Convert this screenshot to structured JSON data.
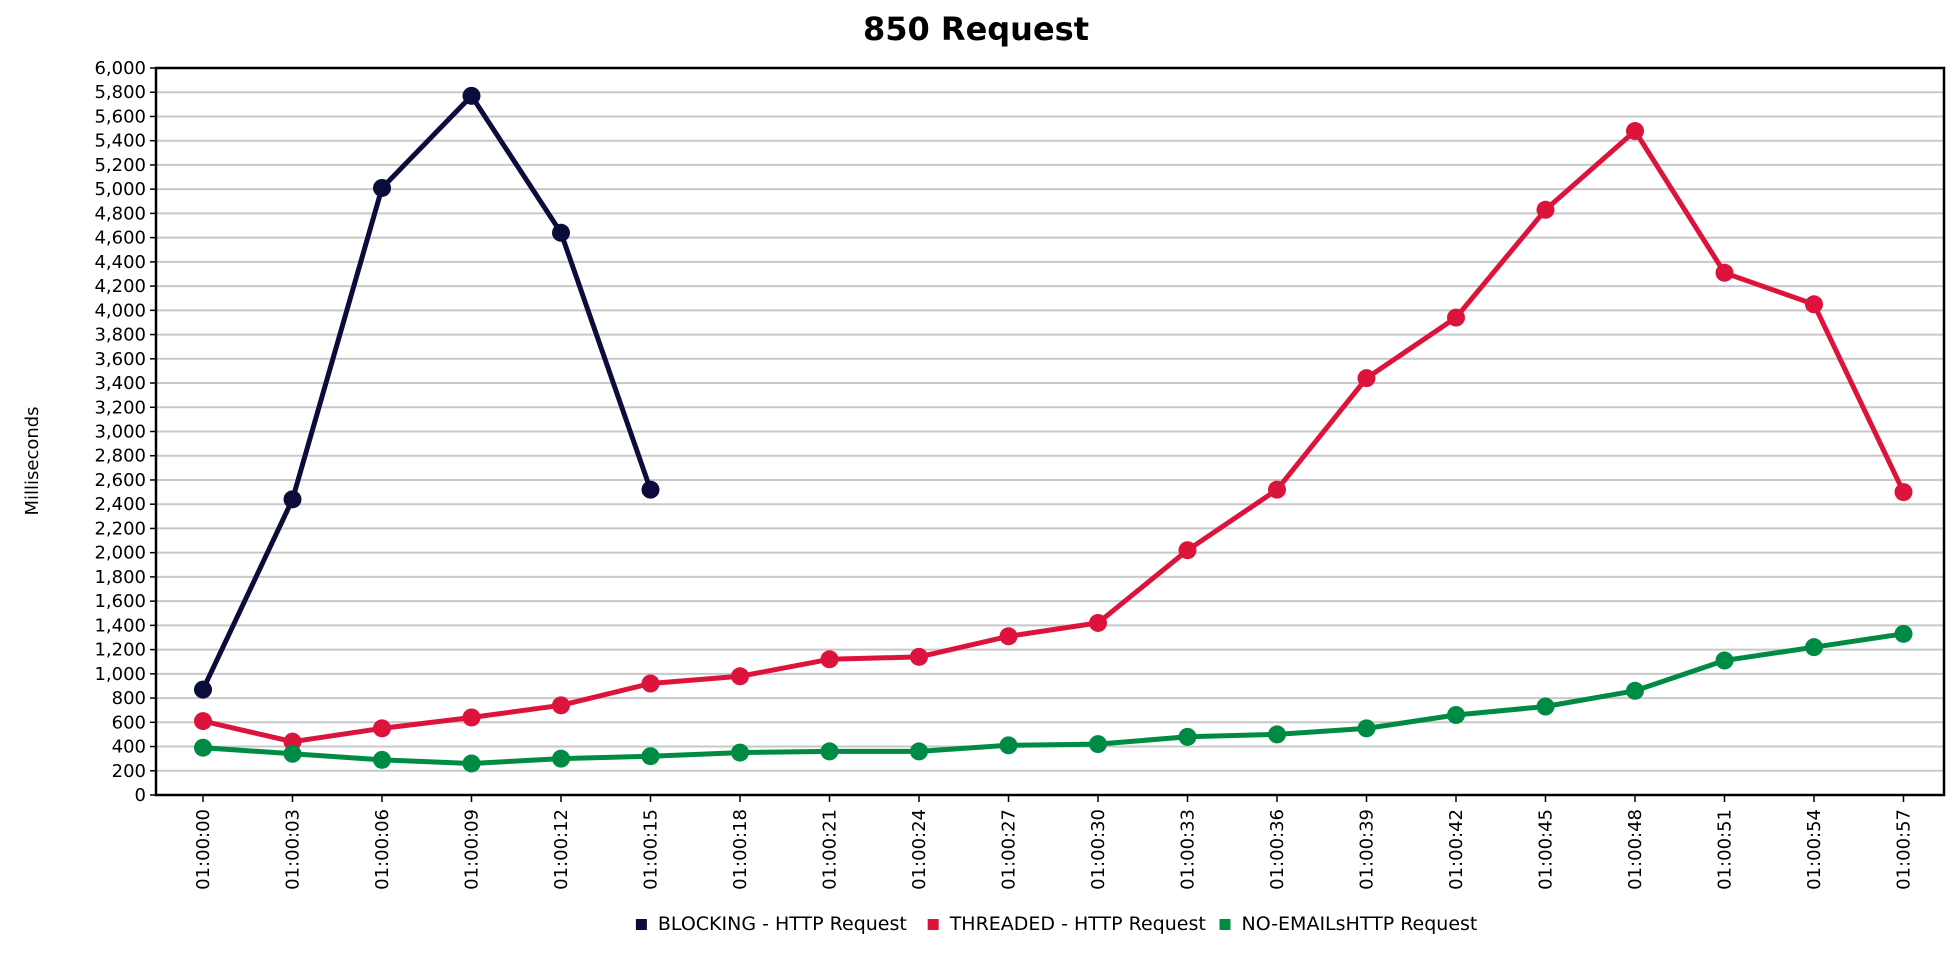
{
  "chart_data": {
    "type": "line",
    "title": "850 Request",
    "xlabel": "",
    "ylabel": "Milliseconds",
    "ylim": [
      0,
      6000
    ],
    "yticks": [
      0,
      200,
      400,
      600,
      800,
      1000,
      1200,
      1400,
      1600,
      1800,
      2000,
      2200,
      2400,
      2600,
      2800,
      3000,
      3200,
      3400,
      3600,
      3800,
      4000,
      4200,
      4400,
      4600,
      4800,
      5000,
      5200,
      5400,
      5600,
      5800,
      6000
    ],
    "ytick_labels": [
      "0",
      "200",
      "400",
      "600",
      "800",
      "1,000",
      "1,200",
      "1,400",
      "1,600",
      "1,800",
      "2,000",
      "2,200",
      "2,400",
      "2,600",
      "2,800",
      "3,000",
      "3,200",
      "3,400",
      "3,600",
      "3,800",
      "4,000",
      "4,200",
      "4,400",
      "4,600",
      "4,800",
      "5,000",
      "5,200",
      "5,400",
      "5,600",
      "5,800",
      "6,000"
    ],
    "categories": [
      "01:00:00",
      "01:00:03",
      "01:00:06",
      "01:00:09",
      "01:00:12",
      "01:00:15",
      "01:00:18",
      "01:00:21",
      "01:00:24",
      "01:00:27",
      "01:00:30",
      "01:00:33",
      "01:00:36",
      "01:00:39",
      "01:00:42",
      "01:00:45",
      "01:00:48",
      "01:00:51",
      "01:00:54",
      "01:00:57"
    ],
    "grid": true,
    "legend_position": "bottom",
    "series": [
      {
        "name": "BLOCKING - HTTP Request",
        "color": "#0c0c3c",
        "values": [
          870,
          2440,
          5010,
          5770,
          4640,
          2520,
          null,
          null,
          null,
          null,
          null,
          null,
          null,
          null,
          null,
          null,
          null,
          null,
          null,
          null
        ]
      },
      {
        "name": "THREADED - HTTP Request",
        "color": "#dc143c",
        "values": [
          610,
          440,
          550,
          640,
          740,
          920,
          980,
          1120,
          1140,
          1310,
          1420,
          2020,
          2520,
          3440,
          3940,
          4830,
          5480,
          4310,
          4050,
          2500
        ]
      },
      {
        "name": "NO-EMAILsHTTP Request",
        "color": "#008b45",
        "values": [
          390,
          340,
          290,
          260,
          300,
          320,
          350,
          360,
          360,
          410,
          420,
          480,
          500,
          550,
          660,
          730,
          860,
          1110,
          1220,
          1330
        ]
      }
    ]
  }
}
